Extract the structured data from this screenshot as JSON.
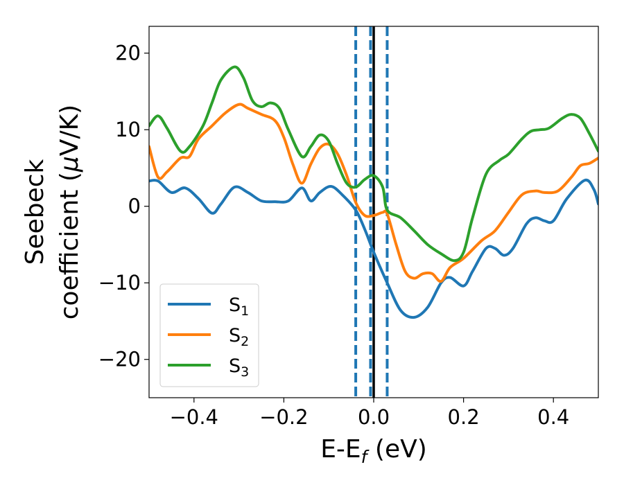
{
  "chart_data": {
    "type": "line",
    "title": "",
    "xlabel": {
      "prefix": "E-E",
      "sub": "f",
      "suffix": " (eV)"
    },
    "ylabel": {
      "line1": "Seebeck",
      "line2_prefix": "coefficient  (",
      "line2_mu": "μ",
      "line2_suffix": "V/K)"
    },
    "xlim": [
      -0.5,
      0.5
    ],
    "ylim": [
      -25,
      23.5
    ],
    "xticks": [
      -0.4,
      -0.2,
      0.0,
      0.2,
      0.4
    ],
    "xtick_labels": [
      "−0.4",
      "−0.2",
      "0.0",
      "0.2",
      "0.4"
    ],
    "yticks": [
      -20,
      -10,
      0,
      10,
      20
    ],
    "ytick_labels": [
      "−20",
      "−10",
      "0",
      "10",
      "20"
    ],
    "grid": false,
    "legend_position": "lower-left",
    "vertical_lines": [
      {
        "x": -0.04,
        "style": "dashed",
        "color": "#1f77b4"
      },
      {
        "x": -0.007,
        "style": "dashed",
        "color": "#1f77b4"
      },
      {
        "x": 0.03,
        "style": "dashed",
        "color": "#1f77b4"
      },
      {
        "x": 0.0,
        "style": "solid",
        "color": "#000000"
      }
    ],
    "series": [
      {
        "name": "S",
        "sub": "1",
        "color": "#1f77b4",
        "points": [
          [
            -0.5,
            3.3
          ],
          [
            -0.48,
            3.3
          ],
          [
            -0.45,
            1.8
          ],
          [
            -0.42,
            2.4
          ],
          [
            -0.39,
            1.0
          ],
          [
            -0.36,
            -0.9
          ],
          [
            -0.34,
            0.3
          ],
          [
            -0.31,
            2.5
          ],
          [
            -0.28,
            1.8
          ],
          [
            -0.25,
            0.7
          ],
          [
            -0.22,
            0.6
          ],
          [
            -0.19,
            0.7
          ],
          [
            -0.16,
            2.4
          ],
          [
            -0.14,
            0.7
          ],
          [
            -0.12,
            1.8
          ],
          [
            -0.095,
            2.6
          ],
          [
            -0.07,
            1.5
          ],
          [
            -0.04,
            -0.5
          ],
          [
            -0.02,
            -3.0
          ],
          [
            0.0,
            -6.0
          ],
          [
            0.03,
            -10.0
          ],
          [
            0.06,
            -13.6
          ],
          [
            0.09,
            -14.5
          ],
          [
            0.12,
            -13.2
          ],
          [
            0.15,
            -10.0
          ],
          [
            0.17,
            -9.3
          ],
          [
            0.2,
            -10.4
          ],
          [
            0.22,
            -8.5
          ],
          [
            0.25,
            -5.5
          ],
          [
            0.27,
            -5.5
          ],
          [
            0.29,
            -6.4
          ],
          [
            0.31,
            -5.5
          ],
          [
            0.34,
            -2.3
          ],
          [
            0.36,
            -1.5
          ],
          [
            0.38,
            -1.9
          ],
          [
            0.4,
            -1.9
          ],
          [
            0.43,
            1.0
          ],
          [
            0.47,
            3.4
          ],
          [
            0.49,
            2.2
          ],
          [
            0.5,
            0.3
          ]
        ]
      },
      {
        "name": "S",
        "sub": "2",
        "color": "#ff7f0e",
        "points": [
          [
            -0.5,
            7.8
          ],
          [
            -0.48,
            3.8
          ],
          [
            -0.46,
            4.5
          ],
          [
            -0.43,
            6.3
          ],
          [
            -0.41,
            6.5
          ],
          [
            -0.39,
            8.8
          ],
          [
            -0.36,
            10.5
          ],
          [
            -0.33,
            12.2
          ],
          [
            -0.3,
            13.3
          ],
          [
            -0.28,
            12.8
          ],
          [
            -0.25,
            12.0
          ],
          [
            -0.22,
            11.2
          ],
          [
            -0.2,
            9.0
          ],
          [
            -0.18,
            5.5
          ],
          [
            -0.16,
            3.0
          ],
          [
            -0.14,
            5.5
          ],
          [
            -0.12,
            7.6
          ],
          [
            -0.1,
            8.1
          ],
          [
            -0.08,
            6.8
          ],
          [
            -0.06,
            4.0
          ],
          [
            -0.04,
            0.5
          ],
          [
            -0.02,
            -1.2
          ],
          [
            0.0,
            -1.2
          ],
          [
            0.02,
            -0.8
          ],
          [
            0.03,
            -1.0
          ],
          [
            0.05,
            -5.0
          ],
          [
            0.07,
            -8.5
          ],
          [
            0.09,
            -9.4
          ],
          [
            0.11,
            -8.8
          ],
          [
            0.13,
            -8.8
          ],
          [
            0.15,
            -9.8
          ],
          [
            0.17,
            -8.0
          ],
          [
            0.2,
            -6.8
          ],
          [
            0.24,
            -4.5
          ],
          [
            0.27,
            -3.2
          ],
          [
            0.3,
            -0.8
          ],
          [
            0.33,
            1.5
          ],
          [
            0.36,
            2.0
          ],
          [
            0.38,
            1.8
          ],
          [
            0.41,
            2.0
          ],
          [
            0.44,
            3.8
          ],
          [
            0.46,
            5.3
          ],
          [
            0.48,
            5.6
          ],
          [
            0.5,
            6.3
          ]
        ]
      },
      {
        "name": "S",
        "sub": "3",
        "color": "#2ca02c",
        "points": [
          [
            -0.5,
            10.5
          ],
          [
            -0.48,
            11.8
          ],
          [
            -0.46,
            10.2
          ],
          [
            -0.43,
            7.2
          ],
          [
            -0.41,
            7.8
          ],
          [
            -0.38,
            10.5
          ],
          [
            -0.36,
            13.5
          ],
          [
            -0.34,
            16.5
          ],
          [
            -0.31,
            18.2
          ],
          [
            -0.29,
            16.8
          ],
          [
            -0.27,
            13.8
          ],
          [
            -0.25,
            13.0
          ],
          [
            -0.23,
            13.5
          ],
          [
            -0.21,
            12.8
          ],
          [
            -0.19,
            10.0
          ],
          [
            -0.16,
            6.5
          ],
          [
            -0.14,
            7.8
          ],
          [
            -0.12,
            9.3
          ],
          [
            -0.1,
            8.5
          ],
          [
            -0.08,
            5.5
          ],
          [
            -0.06,
            3.0
          ],
          [
            -0.04,
            2.5
          ],
          [
            -0.02,
            3.5
          ],
          [
            0.0,
            4.0
          ],
          [
            0.02,
            2.5
          ],
          [
            0.03,
            -0.5
          ],
          [
            0.06,
            -1.5
          ],
          [
            0.09,
            -3.2
          ],
          [
            0.12,
            -5.0
          ],
          [
            0.15,
            -6.2
          ],
          [
            0.18,
            -7.1
          ],
          [
            0.2,
            -6.0
          ],
          [
            0.22,
            -1.5
          ],
          [
            0.25,
            4.2
          ],
          [
            0.28,
            6.0
          ],
          [
            0.3,
            6.8
          ],
          [
            0.33,
            8.8
          ],
          [
            0.35,
            9.8
          ],
          [
            0.37,
            10.0
          ],
          [
            0.39,
            10.2
          ],
          [
            0.42,
            11.5
          ],
          [
            0.44,
            12.0
          ],
          [
            0.46,
            11.5
          ],
          [
            0.48,
            9.5
          ],
          [
            0.5,
            7.2
          ]
        ]
      }
    ]
  }
}
